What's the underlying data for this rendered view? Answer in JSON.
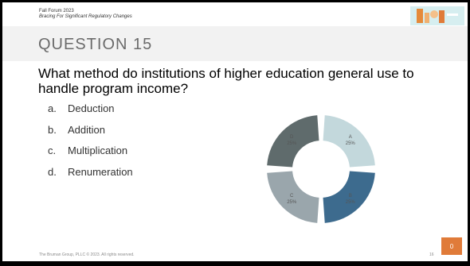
{
  "header": {
    "event": "Fall Forum 2023",
    "subtitle": "Bracing For Significant Regulatory Changes"
  },
  "question": {
    "label": "QUESTION 15",
    "text": "What method do institutions of higher education general use to handle program income?"
  },
  "options": [
    {
      "letter": "a.",
      "text": "Deduction"
    },
    {
      "letter": "b.",
      "text": "Addition"
    },
    {
      "letter": "c.",
      "text": "Multiplication"
    },
    {
      "letter": "d.",
      "text": "Renumeration"
    }
  ],
  "chart_data": {
    "type": "pie",
    "categories": [
      "A",
      "B",
      "C",
      "D"
    ],
    "values": [
      25,
      25,
      25,
      25
    ],
    "labels": [
      "25%",
      "25%",
      "25%",
      "25%"
    ],
    "colors": [
      "#c3d8dc",
      "#3d6b8e",
      "#9aa6ac",
      "#5f6b6c"
    ]
  },
  "footer": {
    "copyright": "The Bruman Group, PLLC © 2023. All rights reserved.",
    "page": "16"
  },
  "response_count": "0",
  "colors": {
    "accent": "#e07b39",
    "title_band": "#f2f2f2"
  }
}
